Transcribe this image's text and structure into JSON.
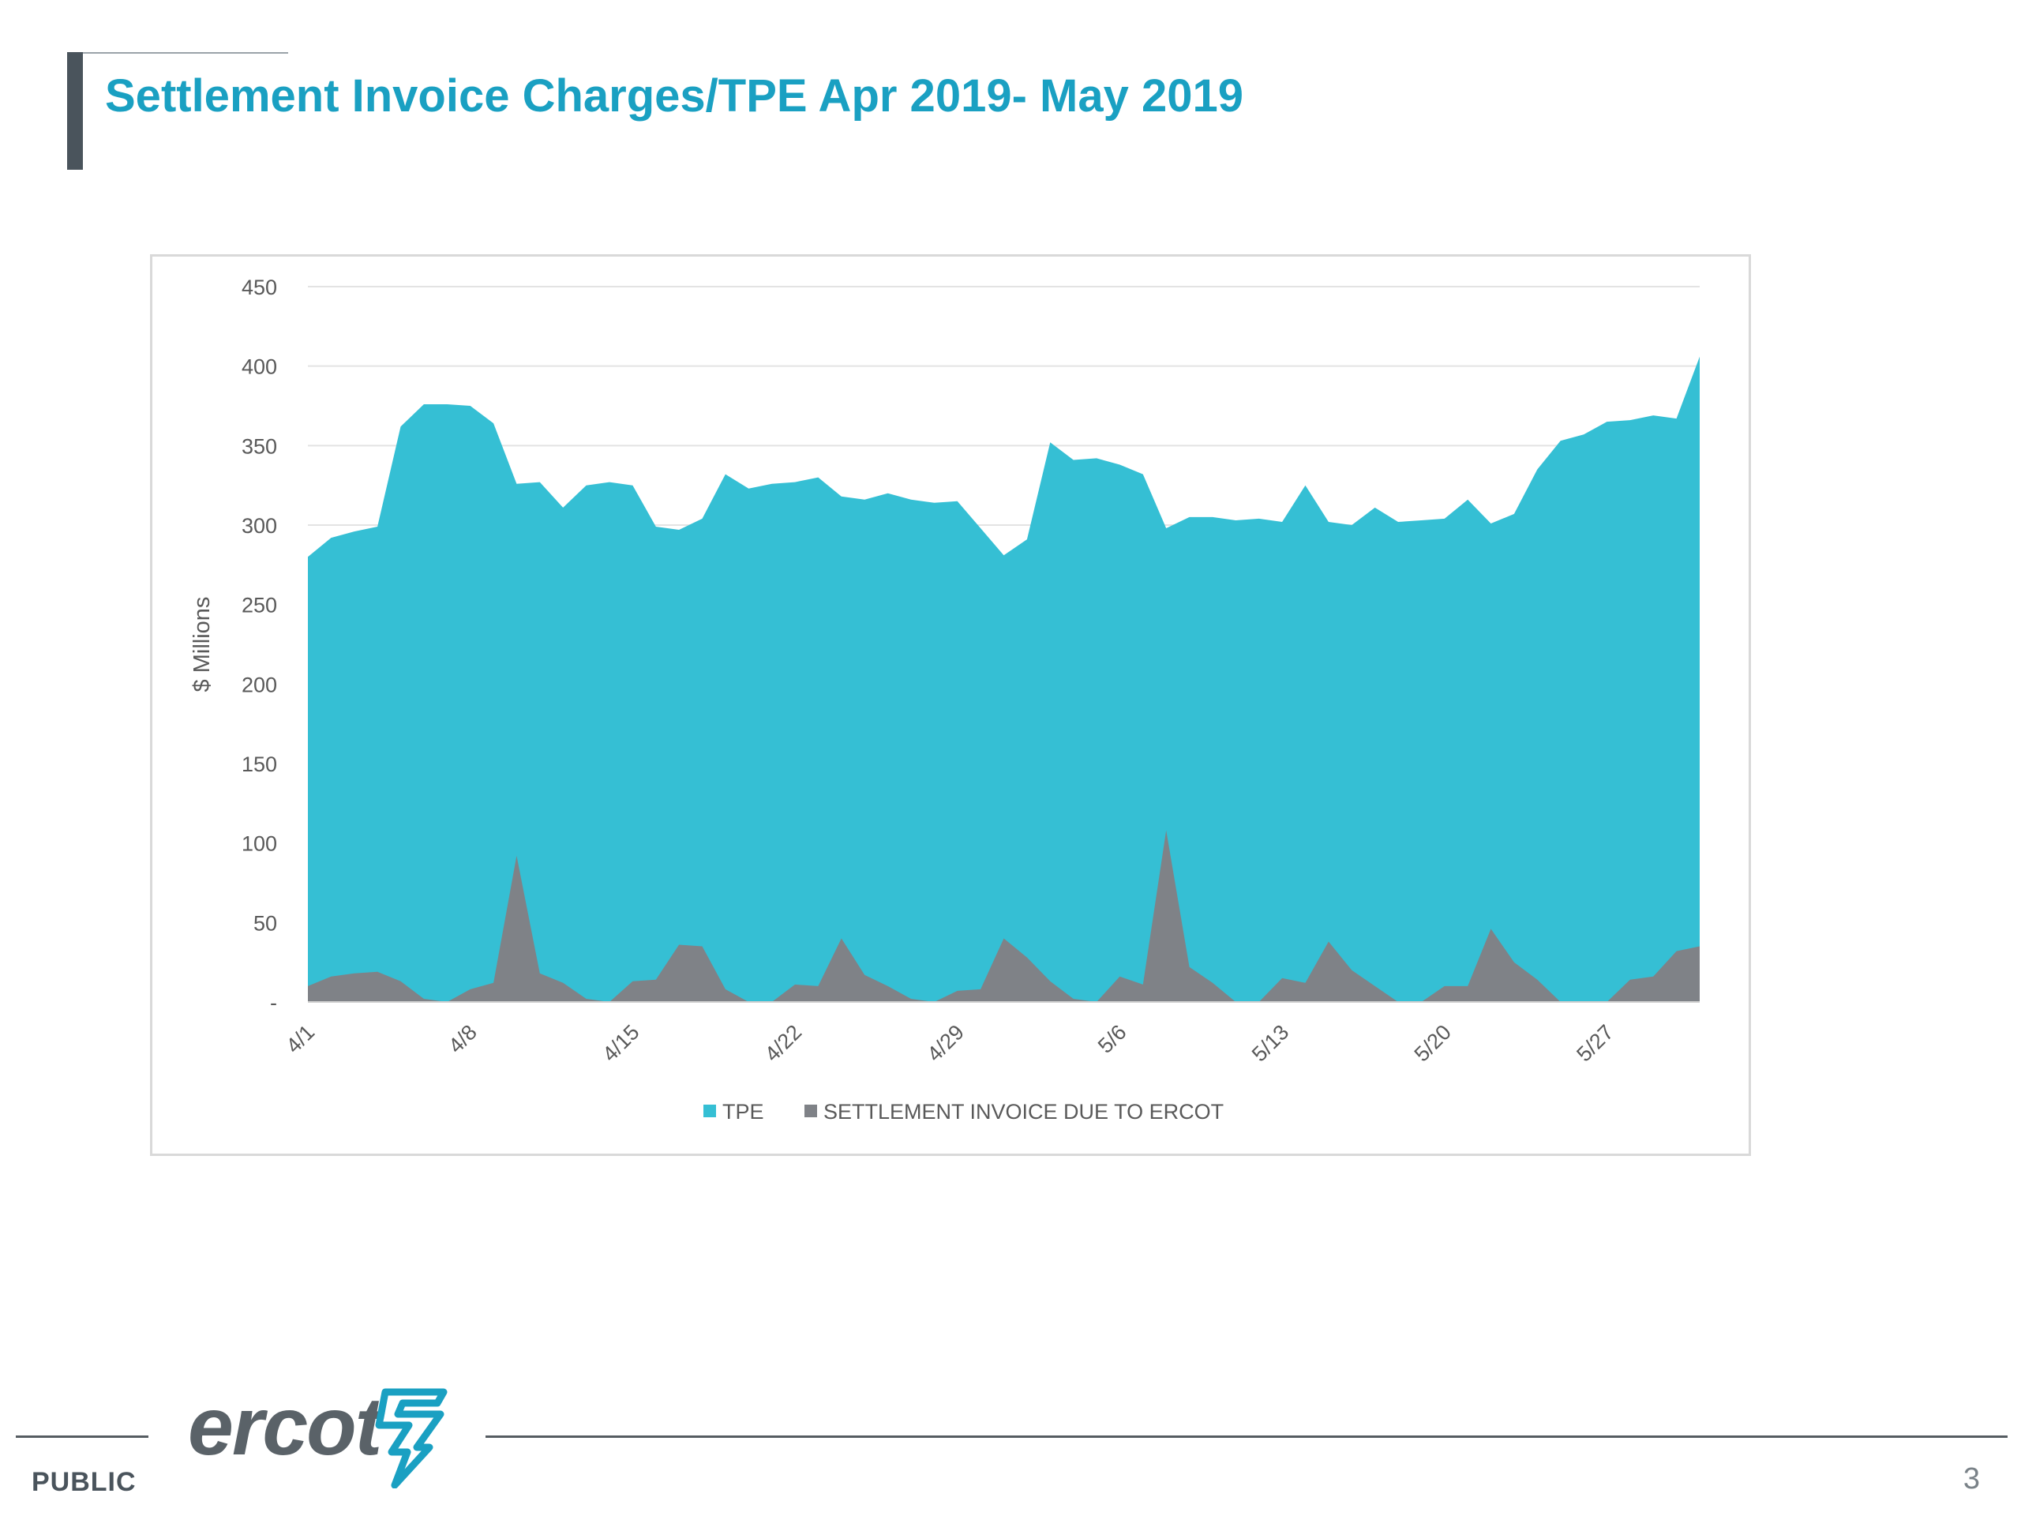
{
  "slide": {
    "title": "Settlement Invoice Charges/TPE Apr 2019- May 2019",
    "footer_label": "PUBLIC",
    "page_number": "3",
    "logo_text": "ercot",
    "accent_color": "#1aa0c2"
  },
  "chart_data": {
    "type": "area",
    "title": "",
    "xlabel": "",
    "ylabel": "$ Millions",
    "ylim": [
      0,
      450
    ],
    "yticks": [
      0,
      50,
      100,
      150,
      200,
      250,
      300,
      350,
      400,
      450
    ],
    "ytick_labels": [
      "-",
      "50",
      "100",
      "150",
      "200",
      "250",
      "300",
      "350",
      "400",
      "450"
    ],
    "x_start": "4/1",
    "x_tick_labels": [
      "4/1",
      "4/8",
      "4/15",
      "4/22",
      "4/29",
      "5/6",
      "5/13",
      "5/20",
      "5/27"
    ],
    "grid": true,
    "legend_position": "bottom",
    "series": [
      {
        "name": "TPE",
        "color": "#35bfd4",
        "values": [
          280,
          292,
          296,
          299,
          362,
          376,
          376,
          375,
          364,
          326,
          327,
          311,
          325,
          327,
          325,
          299,
          297,
          304,
          332,
          323,
          326,
          327,
          330,
          318,
          316,
          320,
          316,
          314,
          315,
          298,
          281,
          291,
          352,
          341,
          342,
          338,
          332,
          298,
          305,
          305,
          303,
          304,
          302,
          325,
          302,
          300,
          311,
          302,
          303,
          304,
          316,
          301,
          307,
          335,
          353,
          357,
          365,
          366,
          369,
          367,
          406
        ]
      },
      {
        "name": "SETTLEMENT INVOICE DUE TO ERCOT",
        "color": "#7f8287",
        "values": [
          10,
          16,
          18,
          19,
          13,
          2,
          0,
          8,
          12,
          92,
          18,
          12,
          2,
          0,
          13,
          14,
          36,
          35,
          8,
          0,
          0,
          11,
          10,
          40,
          17,
          10,
          2,
          0,
          7,
          8,
          40,
          28,
          13,
          2,
          0,
          16,
          11,
          108,
          22,
          12,
          0,
          0,
          15,
          12,
          38,
          20,
          10,
          0,
          0,
          10,
          10,
          46,
          25,
          14,
          0,
          0,
          0,
          14,
          16,
          32,
          35
        ]
      }
    ]
  }
}
